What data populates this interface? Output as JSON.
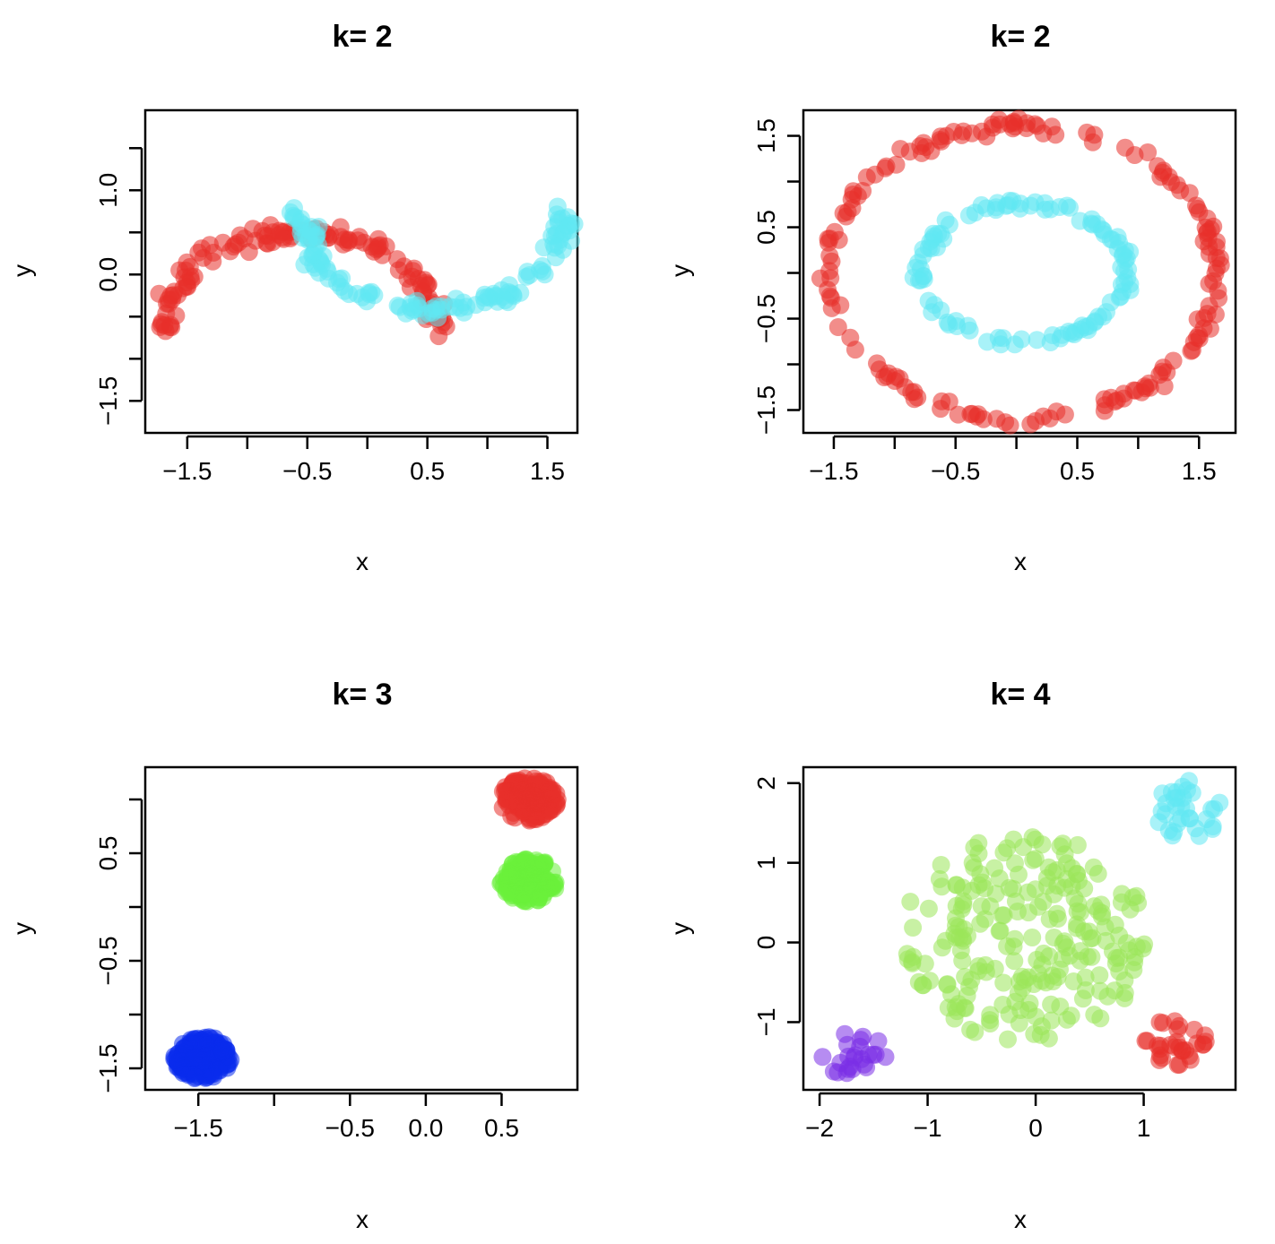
{
  "chart_data": [
    {
      "id": "p1",
      "type": "scatter",
      "title": "k= 2",
      "xlabel": "x",
      "ylabel": "y",
      "xlim": [
        -1.85,
        1.75
      ],
      "ylim": [
        -1.88,
        1.95
      ],
      "xticks": [
        -1.5,
        -1,
        -0.5,
        0,
        0.5,
        1,
        1.5
      ],
      "xtick_labels": [
        "−1.5",
        "",
        "−0.5",
        "",
        "0.5",
        "",
        "1.5"
      ],
      "yticks": [
        -1.5,
        -1,
        -0.5,
        0,
        0.5,
        1,
        1.5
      ],
      "ytick_labels": [
        "−1.5",
        "",
        "",
        "0.0",
        "",
        "1.0",
        ""
      ],
      "clusters": [
        {
          "name": "red",
          "color": "#e8302a",
          "shape": "arc",
          "cx": -0.55,
          "cy": -0.7,
          "r": 1.15,
          "rx": 1.15,
          "ry": 2.4,
          "a0": 0,
          "a1": 180,
          "jitter": 0.05,
          "n": 130,
          "xshift": 0.0
        },
        {
          "name": "cyan",
          "color": "#60e8f2",
          "shape": "arc",
          "cx": 0.55,
          "cy": 0.75,
          "r": 1.1,
          "rx": 1.1,
          "ry": 2.35,
          "a0": 180,
          "a1": 360,
          "jitter": 0.05,
          "n": 130,
          "xshift": 0.0
        }
      ]
    },
    {
      "id": "p2",
      "type": "scatter",
      "title": "k= 2",
      "xlabel": "x",
      "ylabel": "y",
      "xlim": [
        -1.75,
        1.8
      ],
      "ylim": [
        -1.75,
        1.78
      ],
      "xticks": [
        -1.5,
        -1,
        -0.5,
        0,
        0.5,
        1,
        1.5
      ],
      "xtick_labels": [
        "−1.5",
        "",
        "−0.5",
        "",
        "0.5",
        "",
        "1.5"
      ],
      "yticks": [
        -1.5,
        -1,
        -0.5,
        0,
        0.5,
        1,
        1.5
      ],
      "ytick_labels": [
        "−1.5",
        "",
        "−0.5",
        "",
        "0.5",
        "",
        "1.5"
      ],
      "clusters": [
        {
          "name": "red",
          "color": "#e8302a",
          "shape": "ring",
          "cx": 0.05,
          "cy": 0.0,
          "rx": 1.6,
          "ry": 1.6,
          "jitter": 0.04,
          "n": 170
        },
        {
          "name": "cyan",
          "color": "#60e8f2",
          "shape": "ring",
          "cx": 0.05,
          "cy": 0.0,
          "rx": 0.85,
          "ry": 0.75,
          "jitter": 0.03,
          "n": 110
        }
      ]
    },
    {
      "id": "p3",
      "type": "scatter",
      "title": "k= 3",
      "xlabel": "x",
      "ylabel": "y",
      "xlim": [
        -1.85,
        1.0
      ],
      "ylim": [
        -1.7,
        1.3
      ],
      "xticks": [
        -1.5,
        -1,
        -0.5,
        0,
        0.5
      ],
      "xtick_labels": [
        "−1.5",
        "",
        "−0.5",
        "0.0",
        "0.5"
      ],
      "yticks": [
        -1.5,
        -1,
        -0.5,
        0,
        0.5,
        1
      ],
      "ytick_labels": [
        "−1.5",
        "",
        "−0.5",
        "",
        "0.5",
        ""
      ],
      "clusters": [
        {
          "name": "red",
          "color": "#e8302a",
          "shape": "blob",
          "cx": 0.68,
          "cy": 1.0,
          "rx": 0.19,
          "ry": 0.2,
          "n": 160
        },
        {
          "name": "green",
          "color": "#6af03a",
          "shape": "blob",
          "cx": 0.68,
          "cy": 0.25,
          "rx": 0.19,
          "ry": 0.2,
          "n": 160
        },
        {
          "name": "blue",
          "color": "#0a2bec",
          "shape": "blob",
          "cx": -1.47,
          "cy": -1.4,
          "rx": 0.19,
          "ry": 0.2,
          "n": 160
        }
      ]
    },
    {
      "id": "p4",
      "type": "scatter",
      "title": "k= 4",
      "xlabel": "x",
      "ylabel": "y",
      "xlim": [
        -2.15,
        1.85
      ],
      "ylim": [
        -1.85,
        2.2
      ],
      "xticks": [
        -2,
        -1,
        0,
        1
      ],
      "xtick_labels": [
        "−2",
        "−1",
        "0",
        "1"
      ],
      "yticks": [
        -1,
        0,
        1,
        2
      ],
      "ytick_labels": [
        "−1",
        "0",
        "1",
        "2"
      ],
      "clusters": [
        {
          "name": "green",
          "color": "#9ae65a",
          "shape": "disc",
          "cx": -0.1,
          "cy": 0.05,
          "rx": 1.15,
          "ry": 1.3,
          "n": 230
        },
        {
          "name": "cyan",
          "color": "#60e8f2",
          "shape": "disc",
          "cx": 1.4,
          "cy": 1.65,
          "rx": 0.32,
          "ry": 0.38,
          "n": 32
        },
        {
          "name": "red",
          "color": "#e8302a",
          "shape": "disc",
          "cx": 1.3,
          "cy": -1.25,
          "rx": 0.3,
          "ry": 0.3,
          "n": 30
        },
        {
          "name": "purple",
          "color": "#7a2ee6",
          "shape": "disc",
          "cx": -1.7,
          "cy": -1.4,
          "rx": 0.33,
          "ry": 0.28,
          "n": 24
        }
      ]
    }
  ]
}
